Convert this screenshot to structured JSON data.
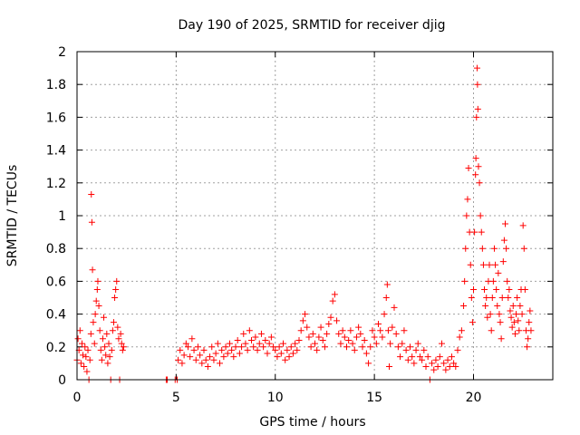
{
  "chart_data": {
    "type": "scatter",
    "title": "Day 190 of 2025, SRMTID for receiver djig",
    "xlabel": "GPS time / hours",
    "ylabel": "SRMTID / TECUs",
    "xlim": [
      0,
      24
    ],
    "ylim": [
      0,
      2
    ],
    "x_ticks": [
      0,
      5,
      10,
      15,
      20
    ],
    "x_tick_labels": [
      "0",
      "5",
      "10",
      "15",
      "20"
    ],
    "y_ticks": [
      0,
      0.2,
      0.4,
      0.6,
      0.8,
      1,
      1.2,
      1.4,
      1.6,
      1.8,
      2
    ],
    "y_tick_labels": [
      "0",
      "0.2",
      "0.4",
      "0.6",
      "0.8",
      "1",
      "1.2",
      "1.4",
      "1.6",
      "1.8",
      "2"
    ],
    "grid": true,
    "marker": "+",
    "color": "#ff0000",
    "series": [
      {
        "name": "SRMTID",
        "points": [
          [
            0.0,
            0.12
          ],
          [
            0.05,
            0.25
          ],
          [
            0.1,
            0.18
          ],
          [
            0.15,
            0.3
          ],
          [
            0.2,
            0.1
          ],
          [
            0.25,
            0.22
          ],
          [
            0.3,
            0.15
          ],
          [
            0.35,
            0.08
          ],
          [
            0.4,
            0.2
          ],
          [
            0.45,
            0.14
          ],
          [
            0.5,
            0.05
          ],
          [
            0.55,
            0.18
          ],
          [
            0.6,
            0.0
          ],
          [
            0.65,
            0.12
          ],
          [
            0.7,
            0.28
          ],
          [
            0.72,
            1.13
          ],
          [
            0.75,
            0.96
          ],
          [
            0.78,
            0.67
          ],
          [
            0.82,
            0.35
          ],
          [
            0.88,
            0.22
          ],
          [
            0.92,
            0.4
          ],
          [
            0.97,
            0.48
          ],
          [
            1.02,
            0.55
          ],
          [
            1.05,
            0.6
          ],
          [
            1.1,
            0.45
          ],
          [
            1.15,
            0.3
          ],
          [
            1.2,
            0.18
          ],
          [
            1.25,
            0.12
          ],
          [
            1.3,
            0.25
          ],
          [
            1.35,
            0.38
          ],
          [
            1.4,
            0.2
          ],
          [
            1.45,
            0.15
          ],
          [
            1.5,
            0.28
          ],
          [
            1.55,
            0.1
          ],
          [
            1.6,
            0.22
          ],
          [
            1.65,
            0.14
          ],
          [
            1.7,
            0.0
          ],
          [
            1.75,
            0.18
          ],
          [
            1.8,
            0.3
          ],
          [
            1.85,
            0.35
          ],
          [
            1.9,
            0.5
          ],
          [
            1.95,
            0.55
          ],
          [
            2.0,
            0.6
          ],
          [
            2.05,
            0.32
          ],
          [
            2.1,
            0.25
          ],
          [
            2.15,
            0.0
          ],
          [
            2.2,
            0.28
          ],
          [
            2.25,
            0.22
          ],
          [
            2.3,
            0.18
          ],
          [
            2.35,
            0.2
          ],
          [
            4.5,
            0.0
          ],
          [
            4.55,
            0.0
          ],
          [
            4.95,
            0.0
          ],
          [
            5.05,
            0.0
          ],
          [
            5.1,
            0.12
          ],
          [
            5.2,
            0.18
          ],
          [
            5.3,
            0.1
          ],
          [
            5.4,
            0.15
          ],
          [
            5.5,
            0.22
          ],
          [
            5.6,
            0.2
          ],
          [
            5.7,
            0.14
          ],
          [
            5.8,
            0.25
          ],
          [
            5.9,
            0.18
          ],
          [
            6.0,
            0.12
          ],
          [
            6.1,
            0.2
          ],
          [
            6.2,
            0.15
          ],
          [
            6.3,
            0.1
          ],
          [
            6.4,
            0.18
          ],
          [
            6.5,
            0.12
          ],
          [
            6.6,
            0.08
          ],
          [
            6.7,
            0.14
          ],
          [
            6.8,
            0.2
          ],
          [
            6.9,
            0.12
          ],
          [
            7.0,
            0.16
          ],
          [
            7.1,
            0.22
          ],
          [
            7.2,
            0.1
          ],
          [
            7.3,
            0.18
          ],
          [
            7.4,
            0.14
          ],
          [
            7.5,
            0.2
          ],
          [
            7.6,
            0.16
          ],
          [
            7.7,
            0.22
          ],
          [
            7.8,
            0.18
          ],
          [
            7.9,
            0.14
          ],
          [
            8.0,
            0.2
          ],
          [
            8.1,
            0.24
          ],
          [
            8.2,
            0.16
          ],
          [
            8.3,
            0.2
          ],
          [
            8.4,
            0.28
          ],
          [
            8.5,
            0.22
          ],
          [
            8.6,
            0.18
          ],
          [
            8.7,
            0.3
          ],
          [
            8.8,
            0.24
          ],
          [
            8.9,
            0.2
          ],
          [
            9.0,
            0.26
          ],
          [
            9.1,
            0.18
          ],
          [
            9.2,
            0.22
          ],
          [
            9.3,
            0.28
          ],
          [
            9.4,
            0.2
          ],
          [
            9.5,
            0.24
          ],
          [
            9.6,
            0.16
          ],
          [
            9.7,
            0.22
          ],
          [
            9.8,
            0.26
          ],
          [
            9.9,
            0.2
          ],
          [
            10.0,
            0.18
          ],
          [
            10.1,
            0.14
          ],
          [
            10.2,
            0.2
          ],
          [
            10.3,
            0.16
          ],
          [
            10.4,
            0.22
          ],
          [
            10.5,
            0.12
          ],
          [
            10.6,
            0.18
          ],
          [
            10.7,
            0.14
          ],
          [
            10.8,
            0.2
          ],
          [
            10.9,
            0.16
          ],
          [
            11.0,
            0.22
          ],
          [
            11.1,
            0.18
          ],
          [
            11.2,
            0.24
          ],
          [
            11.3,
            0.3
          ],
          [
            11.4,
            0.36
          ],
          [
            11.5,
            0.4
          ],
          [
            11.6,
            0.32
          ],
          [
            11.7,
            0.26
          ],
          [
            11.8,
            0.2
          ],
          [
            11.9,
            0.28
          ],
          [
            12.0,
            0.22
          ],
          [
            12.1,
            0.18
          ],
          [
            12.2,
            0.26
          ],
          [
            12.3,
            0.32
          ],
          [
            12.4,
            0.24
          ],
          [
            12.5,
            0.2
          ],
          [
            12.6,
            0.28
          ],
          [
            12.7,
            0.34
          ],
          [
            12.8,
            0.38
          ],
          [
            12.9,
            0.48
          ],
          [
            13.0,
            0.52
          ],
          [
            13.1,
            0.36
          ],
          [
            13.2,
            0.28
          ],
          [
            13.3,
            0.22
          ],
          [
            13.4,
            0.3
          ],
          [
            13.5,
            0.26
          ],
          [
            13.6,
            0.2
          ],
          [
            13.7,
            0.24
          ],
          [
            13.8,
            0.3
          ],
          [
            13.9,
            0.22
          ],
          [
            14.0,
            0.18
          ],
          [
            14.1,
            0.26
          ],
          [
            14.2,
            0.32
          ],
          [
            14.3,
            0.28
          ],
          [
            14.4,
            0.2
          ],
          [
            14.5,
            0.24
          ],
          [
            14.6,
            0.16
          ],
          [
            14.7,
            0.1
          ],
          [
            14.8,
            0.2
          ],
          [
            14.9,
            0.3
          ],
          [
            15.0,
            0.26
          ],
          [
            15.1,
            0.22
          ],
          [
            15.2,
            0.34
          ],
          [
            15.3,
            0.3
          ],
          [
            15.4,
            0.26
          ],
          [
            15.5,
            0.4
          ],
          [
            15.6,
            0.5
          ],
          [
            15.65,
            0.58
          ],
          [
            15.7,
            0.3
          ],
          [
            15.75,
            0.08
          ],
          [
            15.8,
            0.22
          ],
          [
            15.9,
            0.32
          ],
          [
            16.0,
            0.44
          ],
          [
            16.1,
            0.28
          ],
          [
            16.2,
            0.2
          ],
          [
            16.3,
            0.14
          ],
          [
            16.4,
            0.22
          ],
          [
            16.5,
            0.3
          ],
          [
            16.6,
            0.18
          ],
          [
            16.7,
            0.12
          ],
          [
            16.8,
            0.2
          ],
          [
            16.9,
            0.14
          ],
          [
            17.0,
            0.1
          ],
          [
            17.1,
            0.18
          ],
          [
            17.2,
            0.22
          ],
          [
            17.3,
            0.14
          ],
          [
            17.4,
            0.12
          ],
          [
            17.5,
            0.18
          ],
          [
            17.6,
            0.08
          ],
          [
            17.7,
            0.14
          ],
          [
            17.8,
            0.0
          ],
          [
            17.9,
            0.1
          ],
          [
            18.0,
            0.06
          ],
          [
            18.1,
            0.12
          ],
          [
            18.2,
            0.08
          ],
          [
            18.3,
            0.14
          ],
          [
            18.4,
            0.22
          ],
          [
            18.5,
            0.1
          ],
          [
            18.6,
            0.06
          ],
          [
            18.7,
            0.12
          ],
          [
            18.8,
            0.08
          ],
          [
            18.9,
            0.14
          ],
          [
            19.0,
            0.1
          ],
          [
            19.1,
            0.08
          ],
          [
            19.2,
            0.18
          ],
          [
            19.3,
            0.26
          ],
          [
            19.4,
            0.3
          ],
          [
            19.5,
            0.45
          ],
          [
            19.55,
            0.6
          ],
          [
            19.6,
            0.8
          ],
          [
            19.65,
            1.0
          ],
          [
            19.7,
            1.1
          ],
          [
            19.75,
            1.29
          ],
          [
            19.8,
            0.9
          ],
          [
            19.85,
            0.7
          ],
          [
            19.9,
            0.5
          ],
          [
            19.95,
            0.35
          ],
          [
            20.0,
            0.55
          ],
          [
            20.05,
            0.9
          ],
          [
            20.1,
            1.25
          ],
          [
            20.12,
            1.35
          ],
          [
            20.15,
            1.6
          ],
          [
            20.18,
            1.9
          ],
          [
            20.2,
            1.8
          ],
          [
            20.22,
            1.65
          ],
          [
            20.25,
            1.3
          ],
          [
            20.3,
            1.2
          ],
          [
            20.35,
            1.0
          ],
          [
            20.4,
            0.9
          ],
          [
            20.45,
            0.8
          ],
          [
            20.5,
            0.7
          ],
          [
            20.55,
            0.55
          ],
          [
            20.6,
            0.45
          ],
          [
            20.65,
            0.5
          ],
          [
            20.7,
            0.38
          ],
          [
            20.75,
            0.6
          ],
          [
            20.8,
            0.7
          ],
          [
            20.85,
            0.4
          ],
          [
            20.9,
            0.3
          ],
          [
            20.95,
            0.5
          ],
          [
            21.0,
            0.6
          ],
          [
            21.05,
            0.8
          ],
          [
            21.1,
            0.7
          ],
          [
            21.15,
            0.55
          ],
          [
            21.2,
            0.45
          ],
          [
            21.25,
            0.65
          ],
          [
            21.3,
            0.4
          ],
          [
            21.35,
            0.35
          ],
          [
            21.4,
            0.25
          ],
          [
            21.45,
            0.5
          ],
          [
            21.5,
            0.72
          ],
          [
            21.55,
            0.85
          ],
          [
            21.6,
            0.95
          ],
          [
            21.65,
            0.8
          ],
          [
            21.7,
            0.6
          ],
          [
            21.75,
            0.5
          ],
          [
            21.8,
            0.55
          ],
          [
            21.85,
            0.42
          ],
          [
            21.9,
            0.38
          ],
          [
            21.95,
            0.32
          ],
          [
            22.0,
            0.45
          ],
          [
            22.05,
            0.35
          ],
          [
            22.1,
            0.28
          ],
          [
            22.15,
            0.4
          ],
          [
            22.2,
            0.5
          ],
          [
            22.25,
            0.36
          ],
          [
            22.3,
            0.3
          ],
          [
            22.35,
            0.45
          ],
          [
            22.4,
            0.55
          ],
          [
            22.45,
            0.4
          ],
          [
            22.5,
            0.94
          ],
          [
            22.55,
            0.8
          ],
          [
            22.6,
            0.55
          ],
          [
            22.65,
            0.3
          ],
          [
            22.7,
            0.2
          ],
          [
            22.75,
            0.25
          ],
          [
            22.8,
            0.35
          ],
          [
            22.85,
            0.42
          ],
          [
            22.9,
            0.3
          ]
        ]
      }
    ]
  }
}
